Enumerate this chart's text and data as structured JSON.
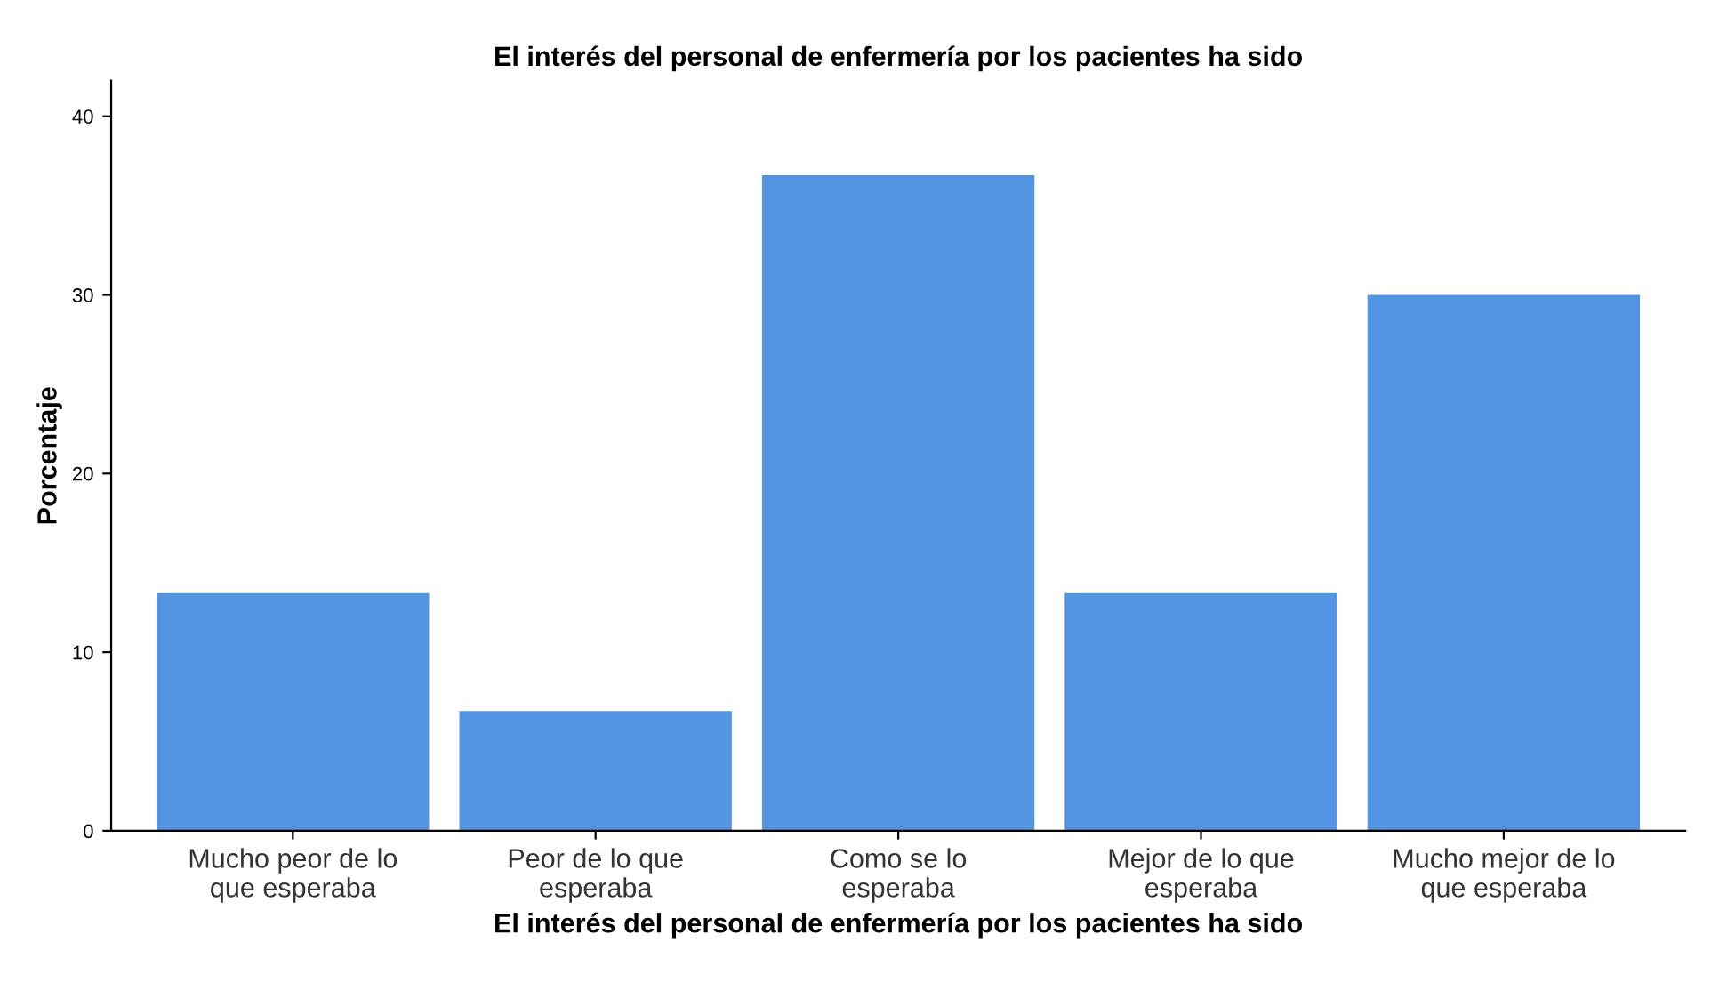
{
  "chart_data": {
    "type": "bar",
    "title": "El interés del personal de enfermería por los pacientes ha sido",
    "xlabel": "El interés del personal de enfermería por los pacientes ha sido",
    "ylabel": "Porcentaje",
    "categories": [
      "Mucho peor de lo\nque esperaba",
      "Peor de lo que\nesperaba",
      "Como se lo\nesperaba",
      "Mejor de lo que\nesperaba",
      "Mucho mejor de lo\nque esperaba"
    ],
    "values": [
      13.3,
      6.7,
      36.7,
      13.3,
      30.0
    ],
    "color": "#5294e2",
    "ylim": [
      0,
      42
    ],
    "yticks": [
      0,
      10,
      20,
      30,
      40
    ],
    "grid": false
  }
}
